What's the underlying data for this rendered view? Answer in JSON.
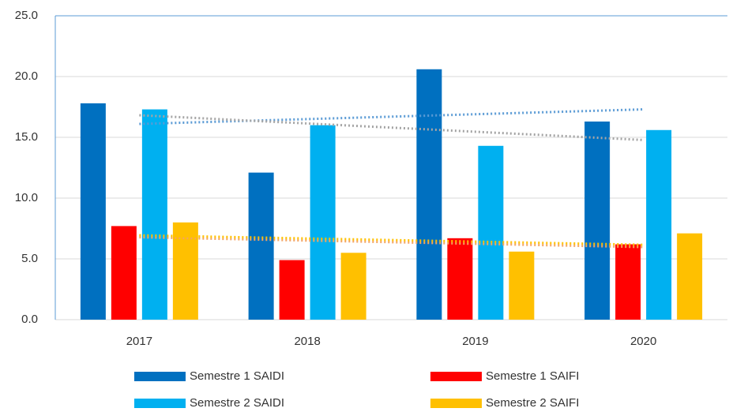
{
  "chart_data": {
    "type": "bar",
    "categories": [
      "2017",
      "2018",
      "2019",
      "2020"
    ],
    "series": [
      {
        "name": "Semestre 1 SAIDI",
        "color": "#0070c0",
        "values": [
          17.8,
          12.1,
          20.6,
          16.3
        ],
        "trendline_color": "#5b9bd5"
      },
      {
        "name": "Semestre 1 SAIFI",
        "color": "#ff0000",
        "values": [
          7.7,
          4.9,
          6.7,
          6.2
        ],
        "trendline_color": "#f4a460"
      },
      {
        "name": "Semestre 2 SAIDI",
        "color": "#00b0f0",
        "values": [
          17.3,
          16.0,
          14.3,
          15.6
        ],
        "trendline_color": "#a5a5a5"
      },
      {
        "name": "Semestre 2 SAIFI",
        "color": "#ffc000",
        "values": [
          8.0,
          5.5,
          5.6,
          7.1
        ],
        "trendline_color": "#ffc000"
      }
    ],
    "ylim": [
      0,
      25
    ],
    "yticks": [
      {
        "value": 0,
        "label": "0.0"
      },
      {
        "value": 5,
        "label": "5.0"
      },
      {
        "value": 10,
        "label": "10.0"
      },
      {
        "value": 15,
        "label": "15.0"
      },
      {
        "value": 20,
        "label": "20.0"
      },
      {
        "value": 25,
        "label": "25.0"
      }
    ],
    "grid": true,
    "legend": "bottom"
  }
}
